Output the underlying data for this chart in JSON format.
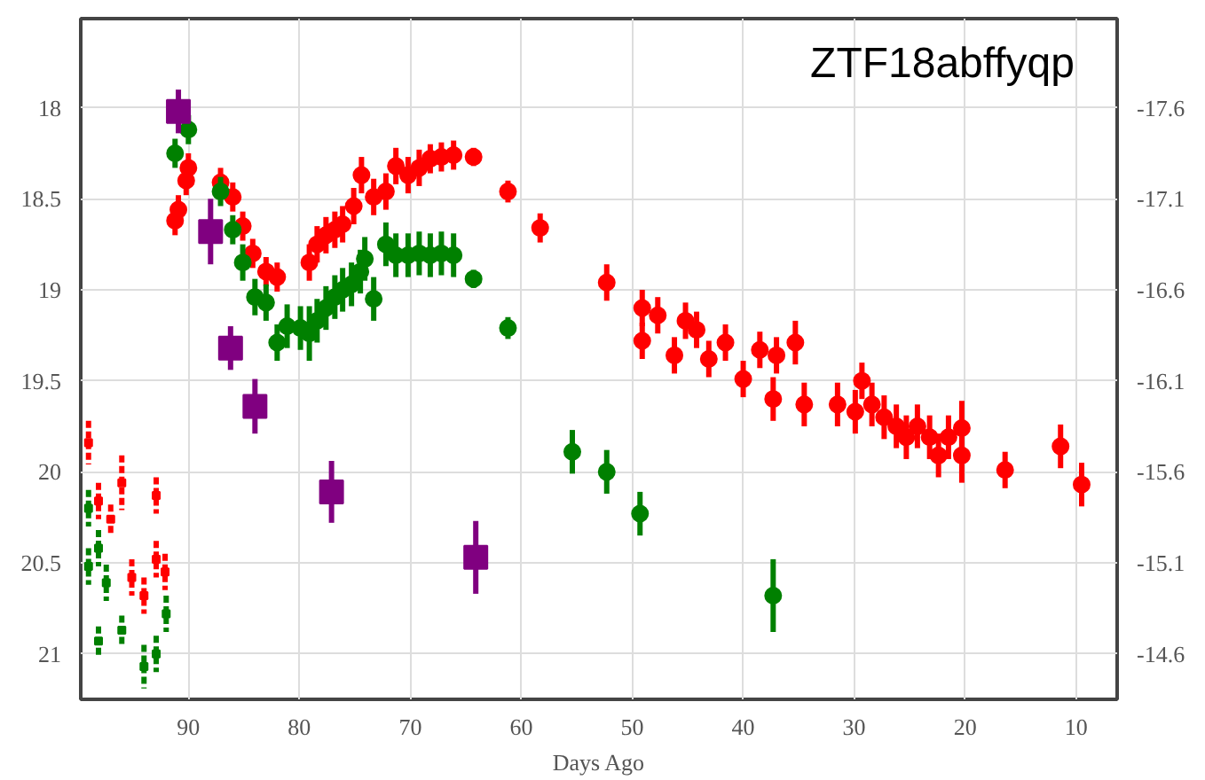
{
  "chart_data": {
    "type": "scatter",
    "xlabel": "Days Ago",
    "annotations": [
      "ZTF18abffyqp"
    ],
    "xlim": [
      99.7,
      6.3
    ],
    "xticks": [
      90,
      80,
      70,
      60,
      50,
      40,
      30,
      20,
      10
    ],
    "ylim": [
      21.25,
      17.51
    ],
    "yticks": [
      18,
      18.5,
      19,
      19.5,
      20,
      20.5,
      21
    ],
    "y2lim": [
      -14.35,
      -18.09
    ],
    "y2ticks": [
      -17.6,
      -17.1,
      -16.6,
      -16.1,
      -15.6,
      -15.1,
      -14.6
    ],
    "grid": true,
    "series": [
      {
        "color": "#ff0000",
        "marker": "circle",
        "line_style": "solid",
        "x": [
          91.2,
          90.9,
          90.2,
          90.0,
          87.1,
          86.0,
          85.1,
          84.2,
          83.0,
          82.0,
          79.1,
          78.4,
          77.6,
          76.8,
          76.1,
          75.1,
          74.4,
          73.3,
          72.2,
          71.3,
          70.2,
          69.2,
          68.2,
          67.2,
          66.1,
          64.3,
          61.2,
          58.3,
          52.3,
          49.1,
          49.1,
          47.7,
          46.2,
          45.2,
          44.2,
          43.1,
          41.6,
          40.0,
          38.5,
          37.0,
          35.3,
          29.3,
          37.3,
          34.5,
          31.5,
          29.9,
          28.4,
          27.3,
          26.2,
          25.3,
          24.3,
          23.2,
          22.4,
          21.5,
          20.3,
          20.3,
          16.4,
          11.4,
          9.5
        ],
        "values": [
          18.62,
          18.56,
          18.4,
          18.33,
          18.41,
          18.49,
          18.65,
          18.8,
          18.9,
          18.93,
          18.85,
          18.75,
          18.7,
          18.67,
          18.64,
          18.54,
          18.37,
          18.49,
          18.46,
          18.32,
          18.37,
          18.33,
          18.28,
          18.27,
          18.26,
          18.27,
          18.46,
          18.66,
          18.96,
          19.1,
          19.28,
          19.14,
          19.36,
          19.17,
          19.22,
          19.38,
          19.29,
          19.49,
          19.33,
          19.36,
          19.29,
          19.5,
          19.6,
          19.63,
          19.63,
          19.67,
          19.63,
          19.7,
          19.75,
          19.81,
          19.75,
          19.81,
          19.91,
          19.81,
          19.76,
          19.91,
          19.99,
          19.86,
          20.07
        ],
        "errors": [
          0.08,
          0.08,
          0.08,
          0.08,
          0.08,
          0.08,
          0.08,
          0.08,
          0.08,
          0.08,
          0.1,
          0.1,
          0.1,
          0.1,
          0.1,
          0.1,
          0.1,
          0.1,
          0.1,
          0.1,
          0.1,
          0.1,
          0.08,
          0.08,
          0.08,
          0.05,
          0.06,
          0.08,
          0.1,
          0.1,
          0.1,
          0.1,
          0.1,
          0.1,
          0.1,
          0.1,
          0.1,
          0.1,
          0.1,
          0.1,
          0.12,
          0.1,
          0.12,
          0.12,
          0.12,
          0.12,
          0.12,
          0.12,
          0.12,
          0.12,
          0.12,
          0.12,
          0.12,
          0.12,
          0.15,
          0.15,
          0.1,
          0.12,
          0.12
        ]
      },
      {
        "color": "#008000",
        "marker": "circle",
        "line_style": "solid",
        "x": [
          91.2,
          90.0,
          87.1,
          86.0,
          85.1,
          84.0,
          83.0,
          82.0,
          81.1,
          79.9,
          79.1,
          78.4,
          77.6,
          76.8,
          76.1,
          75.3,
          74.5,
          74.1,
          73.3,
          72.2,
          71.3,
          70.2,
          69.2,
          68.2,
          67.2,
          66.1,
          64.3,
          61.2,
          55.4,
          52.3,
          49.3,
          37.3
        ],
        "values": [
          18.25,
          18.12,
          18.46,
          18.67,
          18.85,
          19.04,
          19.07,
          19.29,
          19.2,
          19.21,
          19.24,
          19.17,
          19.1,
          19.04,
          19.0,
          18.97,
          18.9,
          18.83,
          19.05,
          18.75,
          18.81,
          18.81,
          18.8,
          18.81,
          18.8,
          18.81,
          18.94,
          19.21,
          19.89,
          20.0,
          20.23,
          20.68
        ],
        "errors": [
          0.08,
          0.08,
          0.08,
          0.08,
          0.1,
          0.1,
          0.1,
          0.1,
          0.12,
          0.12,
          0.15,
          0.12,
          0.12,
          0.12,
          0.12,
          0.12,
          0.12,
          0.12,
          0.12,
          0.12,
          0.12,
          0.12,
          0.12,
          0.12,
          0.12,
          0.12,
          0.05,
          0.06,
          0.12,
          0.12,
          0.12,
          0.2
        ]
      },
      {
        "color": "#800080",
        "marker": "square",
        "line_style": "solid",
        "x": [
          90.9,
          88.0,
          86.2,
          84.0,
          77.1,
          64.1
        ],
        "values": [
          18.02,
          18.68,
          19.32,
          19.64,
          20.11,
          20.47
        ],
        "errors": [
          0.12,
          0.18,
          0.12,
          0.15,
          0.17,
          0.2
        ]
      },
      {
        "color": "#ff0000",
        "marker": "square",
        "line_style": "dashed",
        "x": [
          99.0,
          98.1,
          97.0,
          96.0,
          95.1,
          94.0,
          92.9,
          92.9,
          92.1
        ],
        "values": [
          19.84,
          20.16,
          20.26,
          20.06,
          20.58,
          20.68,
          20.13,
          20.48,
          20.55
        ],
        "errors": [
          0.12,
          0.1,
          0.08,
          0.15,
          0.1,
          0.1,
          0.1,
          0.1,
          0.1
        ]
      },
      {
        "color": "#008000",
        "marker": "square",
        "line_style": "dashed",
        "x": [
          99.0,
          99.0,
          98.1,
          97.4,
          98.1,
          96.0,
          94.0,
          92.9,
          92.0
        ],
        "values": [
          20.2,
          20.52,
          20.42,
          20.61,
          20.93,
          20.87,
          21.07,
          21.0,
          20.78
        ],
        "errors": [
          0.1,
          0.1,
          0.1,
          0.1,
          0.08,
          0.08,
          0.12,
          0.1,
          0.1
        ]
      }
    ]
  }
}
